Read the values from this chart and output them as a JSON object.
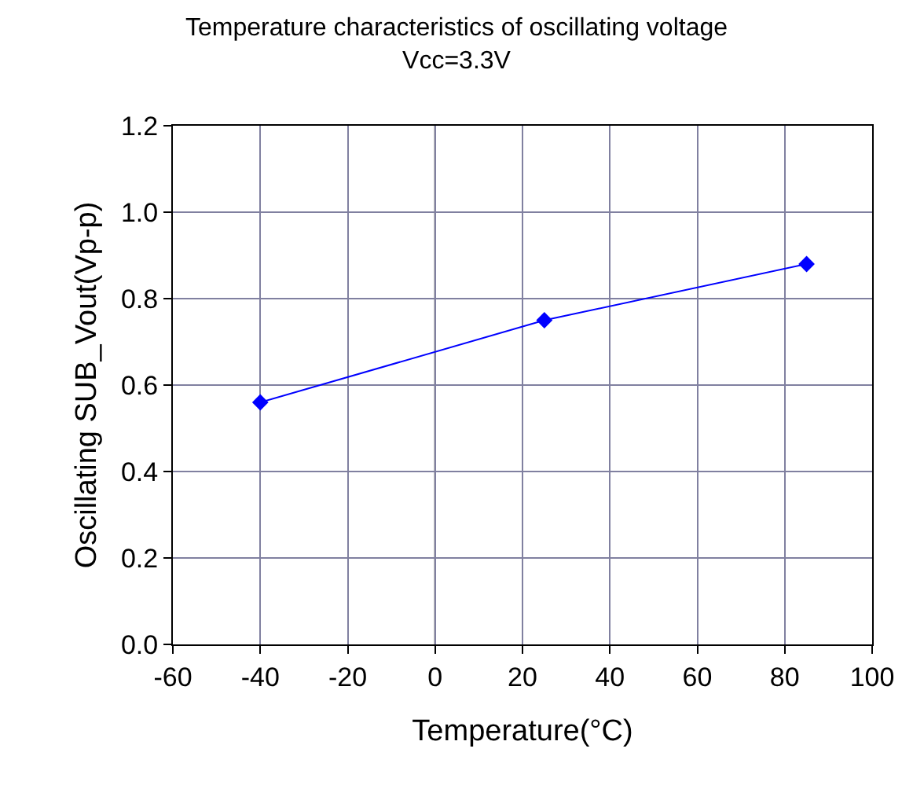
{
  "chart_data": {
    "type": "line",
    "title": "Temperature characteristics of oscillating voltage",
    "subtitle": "Vcc=3.3V",
    "xlabel": "Temperature(°C)",
    "ylabel": "Oscillating SUB_Vout(Vp-p)",
    "x": [
      -40,
      25,
      85
    ],
    "series": [
      {
        "color": "#0000ff",
        "values": [
          0.56,
          0.75,
          0.88
        ]
      }
    ],
    "xlim": [
      -60,
      100
    ],
    "xticks": [
      -60,
      -40,
      -20,
      0,
      20,
      40,
      60,
      80,
      100
    ],
    "ylim": [
      0,
      1.2
    ],
    "yticks": [
      {
        "value": 0,
        "label": "0.0"
      },
      {
        "value": 0.2,
        "label": "0.2"
      },
      {
        "value": 0.4,
        "label": "0.4"
      },
      {
        "value": 0.6,
        "label": "0.6"
      },
      {
        "value": 0.8,
        "label": "0.8"
      },
      {
        "value": 1.0,
        "label": "1.0"
      },
      {
        "value": 1.2,
        "label": "1.2"
      }
    ],
    "ref_lines": [
      {
        "axis": "x",
        "value": 0,
        "color": "#000000"
      }
    ],
    "grid": true,
    "marker": "diamond",
    "line_style": "solid"
  }
}
